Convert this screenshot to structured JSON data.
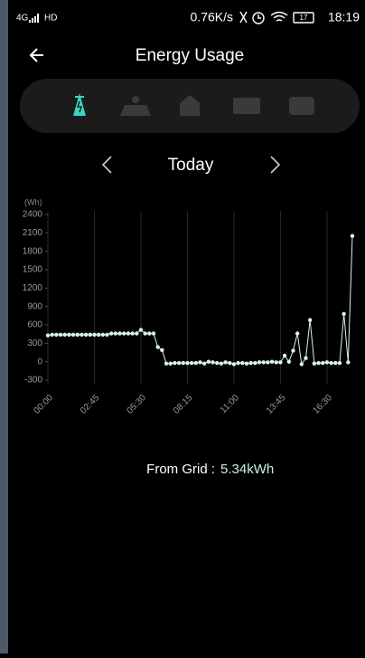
{
  "status_bar": {
    "network": "4G",
    "hd": "HD",
    "speed": "0.76K/s",
    "battery": "17",
    "time": "18:19"
  },
  "header": {
    "title": "Energy Usage"
  },
  "date_nav": {
    "label": "Today"
  },
  "chart_data": {
    "type": "line",
    "y_label": "(Wh)",
    "categories": [
      "00:00",
      null,
      null,
      null,
      null,
      null,
      null,
      null,
      null,
      null,
      null,
      "02:45",
      null,
      null,
      null,
      null,
      null,
      null,
      null,
      null,
      null,
      null,
      "05:30",
      null,
      null,
      null,
      null,
      null,
      null,
      null,
      null,
      null,
      null,
      "08:15",
      null,
      null,
      null,
      null,
      null,
      null,
      null,
      null,
      null,
      null,
      "11:00",
      null,
      null,
      null,
      null,
      null,
      null,
      null,
      null,
      null,
      null,
      "13:45",
      null,
      null,
      null,
      null,
      null,
      null,
      null,
      null,
      null,
      null,
      "16:30",
      null,
      null,
      null,
      null,
      null,
      null
    ],
    "values": [
      430,
      440,
      440,
      440,
      440,
      440,
      440,
      440,
      440,
      440,
      440,
      440,
      440,
      440,
      440,
      460,
      460,
      460,
      460,
      460,
      460,
      460,
      520,
      460,
      460,
      460,
      240,
      190,
      -30,
      -30,
      -20,
      -20,
      -20,
      -20,
      -20,
      -20,
      -10,
      -30,
      0,
      -10,
      -20,
      -30,
      -10,
      -20,
      -40,
      -20,
      -20,
      -30,
      -20,
      -20,
      -10,
      -10,
      -10,
      0,
      -10,
      -10,
      100,
      0,
      180,
      460,
      -40,
      60,
      680,
      -30,
      -20,
      -20,
      -10,
      -20,
      -20,
      -20,
      780,
      -10,
      2050
    ],
    "color": "#d6f5ea",
    "ylim": [
      -300,
      2400
    ],
    "yticks": [
      -300,
      0,
      300,
      600,
      900,
      1200,
      1500,
      1800,
      2100,
      2400
    ],
    "grid": true
  },
  "footer": {
    "label": "From Grid :",
    "value": "5.34kWh"
  }
}
